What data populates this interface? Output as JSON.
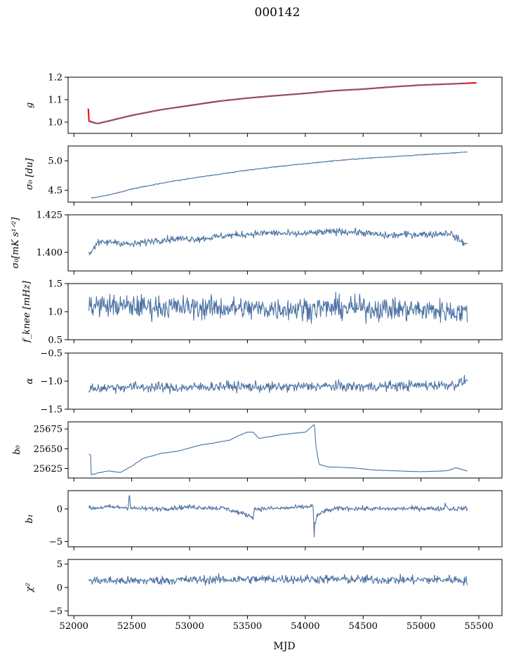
{
  "figure": {
    "title": "000142",
    "xlabel": "MJD"
  },
  "chart_data": [
    {
      "type": "line",
      "id": "g",
      "ylabel": "g",
      "ylim": [
        0.95,
        1.2
      ],
      "yticks": [
        1.0,
        1.1,
        1.2
      ],
      "ytick_labels": [
        "1.0",
        "1.1",
        "1.2"
      ],
      "series": [
        {
          "color": "#4c72a4",
          "x": [
            52140,
            52200,
            52300,
            52500,
            52750,
            53000,
            53250,
            53500,
            53750,
            54000,
            54250,
            54500,
            54750,
            55000,
            55250,
            55400
          ],
          "y": [
            1.0,
            0.993,
            1.005,
            1.03,
            1.055,
            1.074,
            1.093,
            1.107,
            1.118,
            1.128,
            1.14,
            1.147,
            1.157,
            1.165,
            1.17,
            1.175
          ]
        },
        {
          "color": "#e41a1c",
          "x": [
            52130,
            52200,
            52300,
            52500,
            52750,
            53000,
            53250,
            53500,
            53750,
            54000,
            54250,
            54500,
            54750,
            55000,
            55250,
            55480
          ],
          "y": [
            1.005,
            0.993,
            1.005,
            1.03,
            1.055,
            1.074,
            1.093,
            1.107,
            1.118,
            1.128,
            1.14,
            1.147,
            1.157,
            1.165,
            1.17,
            1.175
          ]
        }
      ]
    },
    {
      "type": "line",
      "id": "sigma0-du",
      "ylabel": "σ₀ [du]",
      "ylim": [
        4.3,
        5.25
      ],
      "yticks": [
        4.5,
        5.0
      ],
      "ytick_labels": [
        "4.5",
        "5.0"
      ],
      "series": [
        {
          "color": "#4c72a4",
          "x": [
            52150,
            52300,
            52500,
            52750,
            53000,
            53250,
            53500,
            53750,
            54000,
            54250,
            54500,
            54750,
            55000,
            55250,
            55400
          ],
          "y": [
            4.37,
            4.42,
            4.52,
            4.62,
            4.7,
            4.77,
            4.84,
            4.9,
            4.95,
            5.0,
            5.04,
            5.07,
            5.1,
            5.13,
            5.15
          ]
        }
      ]
    },
    {
      "type": "line",
      "id": "sigma0-mks",
      "ylabel": "σ₀[mK s¹ᐟ²]",
      "ylim": [
        1.3875,
        1.425
      ],
      "yticks": [
        1.4,
        1.425
      ],
      "ytick_labels": [
        "1.400",
        "1.425"
      ],
      "series": [
        {
          "color": "#4c72a4",
          "x": [
            52130,
            52200,
            52350,
            52500,
            52700,
            52900,
            53100,
            53300,
            53500,
            53700,
            53900,
            54100,
            54300,
            54500,
            54700,
            54900,
            55100,
            55250,
            55330,
            55400
          ],
          "y": [
            1.3985,
            1.406,
            1.407,
            1.405,
            1.408,
            1.409,
            1.409,
            1.411,
            1.412,
            1.413,
            1.412,
            1.413,
            1.414,
            1.413,
            1.411,
            1.412,
            1.412,
            1.413,
            1.408,
            1.405
          ]
        }
      ]
    },
    {
      "type": "line",
      "id": "fknee",
      "ylabel": "f_knee [mHz]",
      "ylim": [
        0.5,
        1.5
      ],
      "yticks": [
        0.5,
        1.0,
        1.5
      ],
      "ytick_labels": [
        "0.5",
        "1.0",
        "1.5"
      ],
      "series": [
        {
          "color": "#4c72a4",
          "x": [
            52130,
            52400,
            52800,
            53200,
            53600,
            54000,
            54400,
            54800,
            55200,
            55400
          ],
          "y": [
            1.12,
            1.1,
            1.08,
            1.07,
            1.05,
            1.06,
            1.07,
            1.04,
            1.02,
            0.98
          ]
        }
      ]
    },
    {
      "type": "line",
      "id": "alpha",
      "ylabel": "α",
      "ylim": [
        -1.5,
        -0.5
      ],
      "yticks": [
        -1.5,
        -1.0,
        -0.5
      ],
      "ytick_labels": [
        "−1.5",
        "−1.0",
        "−0.5"
      ],
      "series": [
        {
          "color": "#4c72a4",
          "x": [
            52130,
            52500,
            52900,
            53300,
            53700,
            54100,
            54500,
            54900,
            55300,
            55400
          ],
          "y": [
            -1.13,
            -1.1,
            -1.12,
            -1.09,
            -1.11,
            -1.09,
            -1.1,
            -1.08,
            -1.06,
            -0.98
          ]
        }
      ]
    },
    {
      "type": "line",
      "id": "b0",
      "ylabel": "b₀",
      "ylim": [
        25613,
        25684
      ],
      "yticks": [
        25625,
        25650,
        25675
      ],
      "ytick_labels": [
        "25625",
        "25650",
        "25675"
      ],
      "series": [
        {
          "color": "#4c72a4",
          "x": [
            52130,
            52145,
            52150,
            52200,
            52300,
            52400,
            52500,
            52600,
            52750,
            52900,
            53100,
            53200,
            53350,
            53400,
            53500,
            53550,
            53600,
            53800,
            54000,
            54080,
            54090,
            54120,
            54200,
            54400,
            54600,
            54800,
            55000,
            55200,
            55250,
            55300,
            55400
          ],
          "y": [
            25643,
            25642,
            25617,
            25619,
            25622,
            25620,
            25628,
            25638,
            25644,
            25647,
            25655,
            25657,
            25661,
            25665,
            25671,
            25671,
            25663,
            25668,
            25671,
            25681,
            25655,
            25630,
            25627,
            25626,
            25623,
            25622,
            25621,
            25622,
            25623,
            25626,
            25622
          ]
        }
      ]
    },
    {
      "type": "line",
      "id": "b1",
      "ylabel": "b₁",
      "ylim": [
        -5.8,
        2.8
      ],
      "yticks": [
        -5,
        0
      ],
      "ytick_labels": [
        "−5",
        "0"
      ],
      "series": [
        {
          "color": "#4c72a4",
          "x": [
            52130,
            52300,
            52470,
            52480,
            52490,
            52700,
            53000,
            53300,
            53550,
            53560,
            53800,
            54000,
            54070,
            54075,
            54080,
            54100,
            54150,
            54300,
            54700,
            55000,
            55200,
            55210,
            55230,
            55400
          ],
          "y": [
            0.1,
            0.3,
            0.2,
            2.7,
            0.1,
            0.0,
            0.3,
            0.1,
            -1.2,
            0.0,
            0.1,
            0.3,
            0.5,
            -5.3,
            -2.5,
            -1.2,
            -0.4,
            0.1,
            0.0,
            0.1,
            0.0,
            1.0,
            0.0,
            0.1
          ]
        }
      ]
    },
    {
      "type": "line",
      "id": "chi2",
      "ylabel": "χ²",
      "ylim": [
        -6,
        6
      ],
      "yticks": [
        -5,
        0,
        5
      ],
      "ytick_labels": [
        "−5",
        "0",
        "5"
      ],
      "xlim": [
        51950,
        55700
      ],
      "xticks": [
        52000,
        52500,
        53000,
        53500,
        54000,
        54500,
        55000,
        55500
      ],
      "xtick_labels": [
        "52000",
        "52500",
        "53000",
        "53500",
        "54000",
        "54500",
        "55000",
        "55500"
      ],
      "series": [
        {
          "color": "#4c72a4",
          "x": [
            52130,
            52500,
            52900,
            53300,
            53700,
            54100,
            54500,
            54900,
            55300,
            55400
          ],
          "y": [
            1.5,
            1.4,
            1.6,
            1.7,
            1.8,
            1.8,
            1.7,
            1.6,
            1.7,
            1.4
          ]
        }
      ]
    }
  ]
}
